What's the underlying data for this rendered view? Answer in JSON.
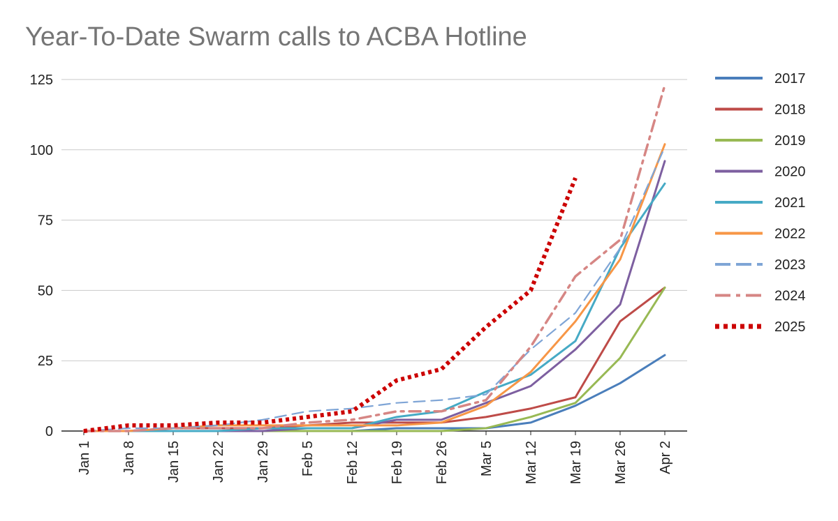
{
  "chart_data": {
    "type": "line",
    "title": "Year-To-Date Swarm calls to ACBA Hotline",
    "xlabel": "",
    "ylabel": "",
    "categories": [
      "Jan 1",
      "Jan 8",
      "Jan 15",
      "Jan 22",
      "Jan 29",
      "Feb 5",
      "Feb 12",
      "Feb 19",
      "Feb 26",
      "Mar 5",
      "Mar 12",
      "Mar 19",
      "Mar 26",
      "Apr 2"
    ],
    "y_ticks": [
      "0",
      "25",
      "50",
      "75",
      "100",
      "125"
    ],
    "ylim": [
      0,
      125
    ],
    "grid": "horizontal",
    "legend": "right",
    "series": [
      {
        "name": "2017",
        "color": "#4a7ebb",
        "style": "solid",
        "values": [
          0,
          0,
          0,
          0,
          0,
          0,
          0,
          1,
          1,
          1,
          3,
          9,
          17,
          27
        ]
      },
      {
        "name": "2018",
        "color": "#be4b48",
        "style": "solid",
        "values": [
          0,
          0,
          1,
          1,
          1,
          2,
          3,
          3,
          3,
          5,
          8,
          12,
          39,
          51
        ]
      },
      {
        "name": "2019",
        "color": "#98b954",
        "style": "solid",
        "values": [
          0,
          0,
          0,
          0,
          0,
          0,
          0,
          0,
          0,
          1,
          5,
          10,
          26,
          51
        ]
      },
      {
        "name": "2020",
        "color": "#7d5fa0",
        "style": "solid",
        "values": [
          0,
          0,
          0,
          0,
          0,
          1,
          1,
          4,
          4,
          10,
          16,
          29,
          45,
          96
        ]
      },
      {
        "name": "2021",
        "color": "#46aac5",
        "style": "solid",
        "values": [
          0,
          0,
          0,
          0,
          1,
          1,
          1,
          5,
          7,
          14,
          20,
          32,
          65,
          88
        ]
      },
      {
        "name": "2022",
        "color": "#f79646",
        "style": "solid",
        "values": [
          0,
          0,
          1,
          2,
          2,
          2,
          2,
          2,
          3,
          9,
          21,
          39,
          61,
          102
        ]
      },
      {
        "name": "2023",
        "color": "#7fa5d6",
        "style": "dash",
        "values": [
          0,
          1,
          1,
          2,
          4,
          7,
          8,
          10,
          11,
          13,
          29,
          42,
          65,
          101
        ]
      },
      {
        "name": "2024",
        "color": "#d68684",
        "style": "dashdot",
        "values": [
          0,
          0,
          1,
          1,
          1,
          3,
          4,
          7,
          7,
          11,
          30,
          55,
          68,
          123
        ]
      },
      {
        "name": "2025",
        "color": "#cc0000",
        "style": "dotted",
        "values": [
          0,
          2,
          2,
          3,
          3,
          5,
          7,
          18,
          22,
          37,
          50,
          90,
          null,
          null
        ]
      }
    ]
  }
}
